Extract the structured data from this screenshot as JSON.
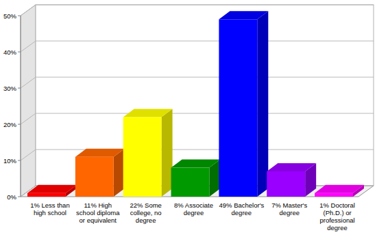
{
  "chart_data": {
    "type": "bar",
    "categories": [
      "1% Less than high school",
      "11% High school diploma or equivalent",
      "22% Some college, no degree",
      "8% Associate degree",
      "49% Bachelor's degree",
      "7% Master's degree",
      "1% Doctoral (Ph.D.) or professional degree"
    ],
    "values": [
      1,
      11,
      22,
      8,
      49,
      7,
      1
    ],
    "colors": [
      "#ff0000",
      "#ff6600",
      "#ffff00",
      "#009900",
      "#0000ff",
      "#9900ff",
      "#ff00ff"
    ],
    "ylim": [
      0,
      50
    ],
    "yticks": [
      {
        "value": 0,
        "label": "0%"
      },
      {
        "value": 10,
        "label": "10%"
      },
      {
        "value": 20,
        "label": "20%"
      },
      {
        "value": 30,
        "label": "30%"
      },
      {
        "value": 40,
        "label": "40%"
      },
      {
        "value": 50,
        "label": "50%"
      }
    ],
    "grid": true
  }
}
